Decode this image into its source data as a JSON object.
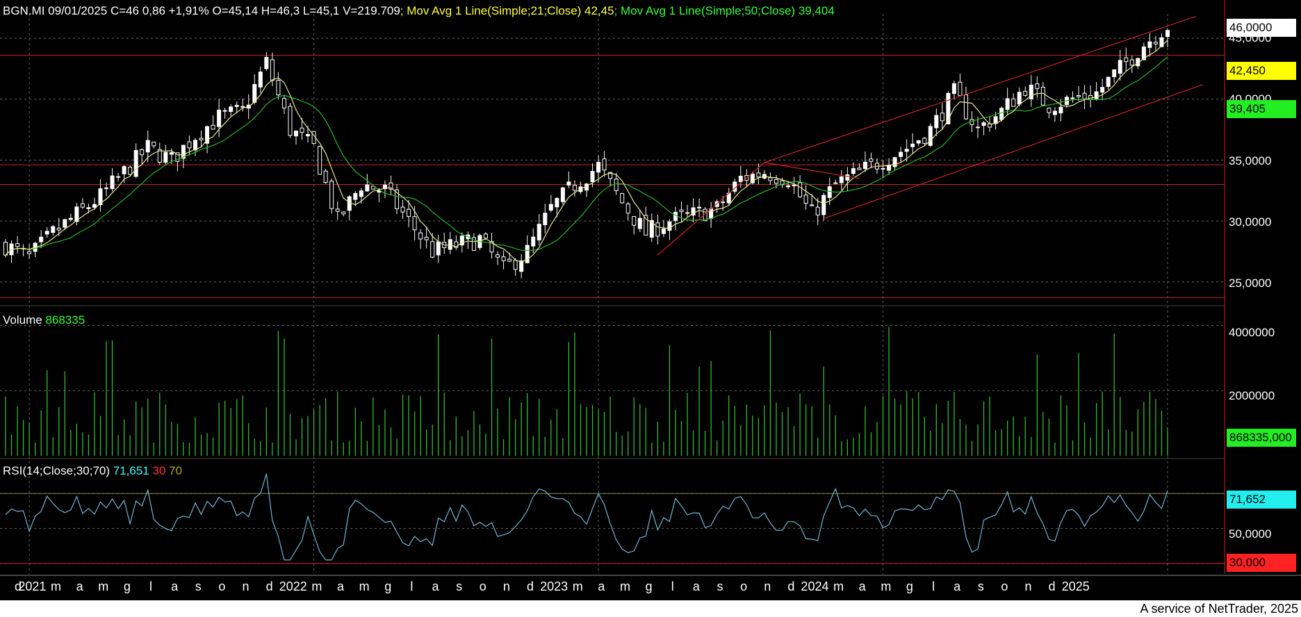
{
  "header": {
    "symbol_line": "BGN.MI 09/01/2025 C=46 0,86 +1,91% O=45,14 H=46,3 L=45,1 V=219.709",
    "ma21_label": "; Mov Avg 1 Line(Simple;21;Close)",
    "ma21_value": "42,45",
    "ma50_label": "; Mov Avg 1 Line(Simple;50;Close)",
    "ma50_value": "39,404"
  },
  "volume_header": {
    "label": "Volume",
    "value": "868335"
  },
  "rsi_header": {
    "label": "RSI(14;Close;30;70)",
    "value": "71,651",
    "low": "30",
    "high": "70"
  },
  "price_axis": {
    "ticks": [
      "45,0000",
      "40,0000",
      "35,0000",
      "30,0000",
      "25,0000"
    ]
  },
  "volume_axis": {
    "ticks": [
      "4000000",
      "2000000"
    ]
  },
  "rsi_axis": {
    "ticks": [
      "70,0000",
      "50,0000"
    ]
  },
  "badges": {
    "last_price": "46,0000",
    "ma21": "42,450",
    "ma50": "39,405",
    "volume": "868335,000",
    "rsi": "71,652",
    "rsi_low": "30,000"
  },
  "x_axis": {
    "labels": [
      "d",
      "2021",
      "m",
      "a",
      "m",
      "g",
      "l",
      "a",
      "s",
      "o",
      "n",
      "d",
      "2022",
      "m",
      "a",
      "m",
      "g",
      "l",
      "a",
      "s",
      "o",
      "n",
      "d",
      "2023",
      "m",
      "a",
      "m",
      "g",
      "l",
      "a",
      "s",
      "o",
      "n",
      "d",
      "2024",
      "m",
      "a",
      "m",
      "g",
      "l",
      "a",
      "s",
      "o",
      "n",
      "d",
      "2025"
    ]
  },
  "footer": "A service of NetTrader, 2025",
  "colors": {
    "background": "#000000",
    "candle": "#ffffff",
    "ma21": "#e8e890",
    "ma50": "#22bb22",
    "volume": "#33bb33",
    "rsi": "#6fb7d6",
    "trendline": "#cc2222"
  },
  "chart_data": [
    {
      "type": "candlestick",
      "title": "BGN.MI",
      "ylim": [
        23.5,
        47
      ],
      "x_range": [
        "2020-12",
        "2025-01"
      ],
      "monthly_close": [
        [
          "2020-12",
          28.0
        ],
        [
          "2021-01",
          27.0
        ],
        [
          "2021-02",
          29.0
        ],
        [
          "2021-03",
          30.5
        ],
        [
          "2021-04",
          32.0
        ],
        [
          "2021-05",
          34.0
        ],
        [
          "2021-06",
          36.0
        ],
        [
          "2021-07",
          35.0
        ],
        [
          "2021-08",
          37.0
        ],
        [
          "2021-09",
          38.5
        ],
        [
          "2021-10",
          39.0
        ],
        [
          "2021-11",
          43.0
        ],
        [
          "2021-12",
          37.5
        ],
        [
          "2022-01",
          36.0
        ],
        [
          "2022-02",
          30.0
        ],
        [
          "2022-03",
          33.0
        ],
        [
          "2022-04",
          32.5
        ],
        [
          "2022-05",
          30.0
        ],
        [
          "2022-06",
          27.5
        ],
        [
          "2022-07",
          28.0
        ],
        [
          "2022-08",
          28.5
        ],
        [
          "2022-09",
          26.0
        ],
        [
          "2022-10",
          27.5
        ],
        [
          "2022-11",
          31.0
        ],
        [
          "2022-12",
          33.0
        ],
        [
          "2023-01",
          34.5
        ],
        [
          "2023-02",
          31.5
        ],
        [
          "2023-03",
          29.0
        ],
        [
          "2023-04",
          30.0
        ],
        [
          "2023-05",
          30.5
        ],
        [
          "2023-06",
          31.0
        ],
        [
          "2023-07",
          33.5
        ],
        [
          "2023-08",
          34.0
        ],
        [
          "2023-09",
          33.5
        ],
        [
          "2023-10",
          30.5
        ],
        [
          "2023-11",
          33.0
        ],
        [
          "2023-12",
          34.0
        ],
        [
          "2024-01",
          35.0
        ],
        [
          "2024-02",
          36.0
        ],
        [
          "2024-03",
          37.5
        ],
        [
          "2024-04",
          40.5
        ],
        [
          "2024-05",
          37.5
        ],
        [
          "2024-06",
          39.0
        ],
        [
          "2024-07",
          41.0
        ],
        [
          "2024-08",
          39.5
        ],
        [
          "2024-09",
          40.0
        ],
        [
          "2024-10",
          40.5
        ],
        [
          "2024-11",
          42.5
        ],
        [
          "2024-12",
          44.5
        ],
        [
          "2025-01",
          46.0
        ]
      ],
      "series": [
        {
          "name": "Mov Avg 1 Line(Simple;21;Close)",
          "last": 42.45
        },
        {
          "name": "Mov Avg 1 Line(Simple;50;Close)",
          "last": 39.404
        }
      ],
      "support_resistance": [
        43.6,
        34.6,
        33.0,
        23.7
      ]
    },
    {
      "type": "bar",
      "title": "Volume",
      "ylim": [
        0,
        4500000
      ],
      "last": 868335,
      "notable": [
        [
          "2021-11",
          4000000
        ],
        [
          "2022-02",
          4000000
        ],
        [
          "2024-04",
          4200000
        ],
        [
          "2024-12",
          2300000
        ]
      ]
    },
    {
      "type": "line",
      "title": "RSI(14;Close;30;70)",
      "ylim": [
        24,
        90
      ],
      "last": 71.652,
      "levels": [
        30,
        70
      ]
    }
  ]
}
